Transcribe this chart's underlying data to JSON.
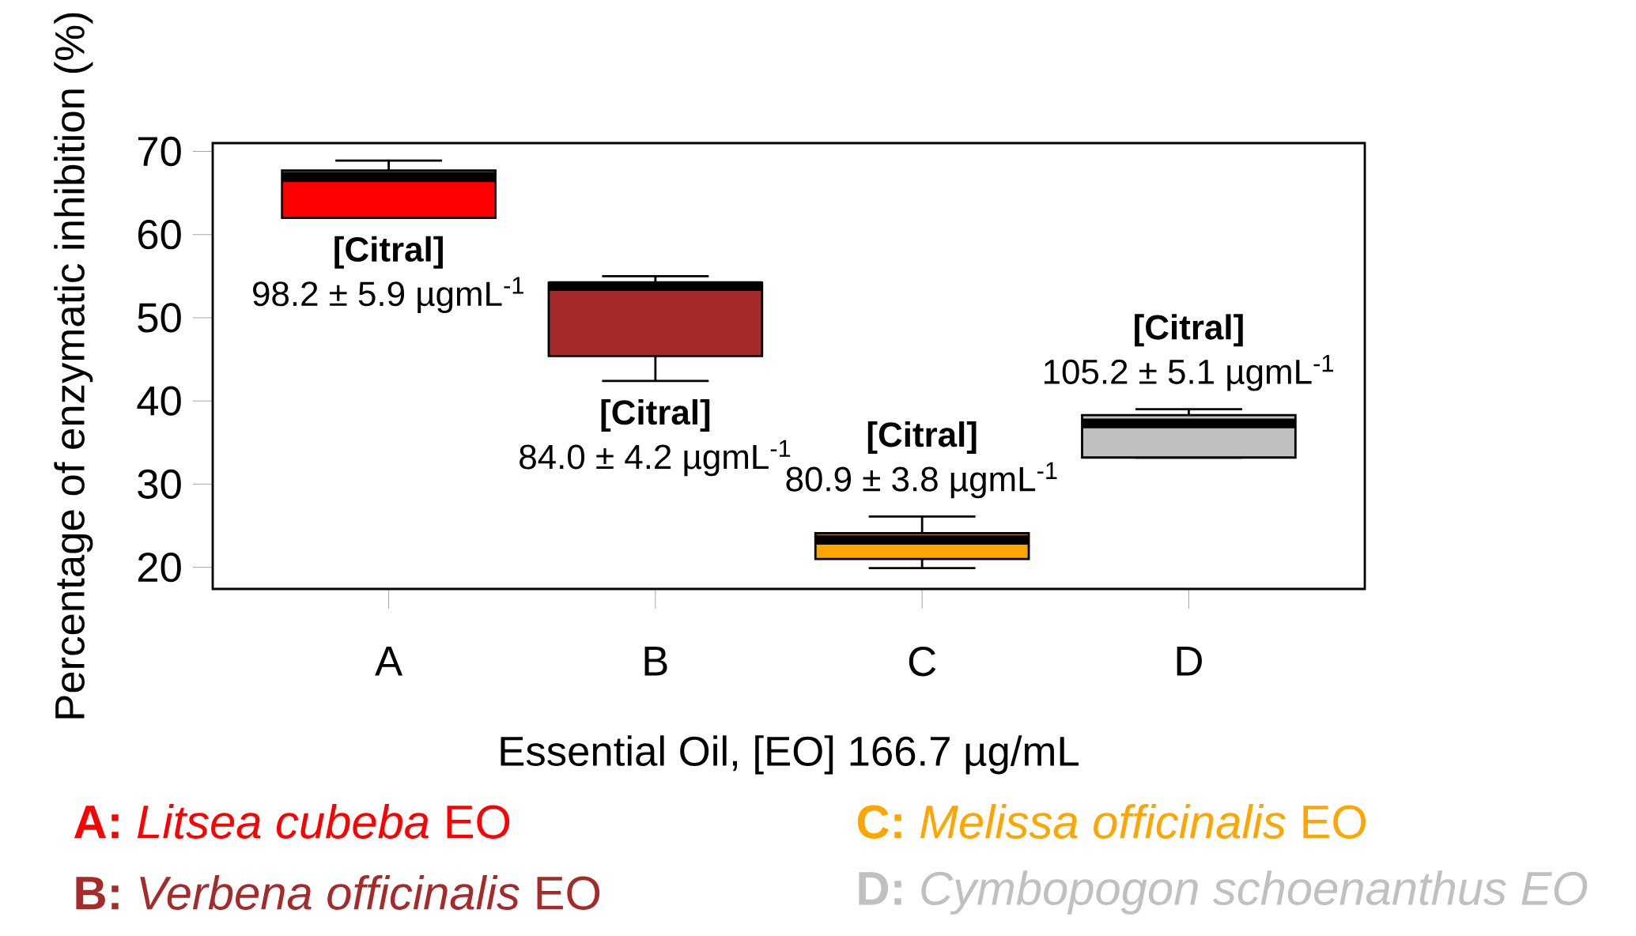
{
  "chart_data": {
    "type": "box",
    "categories": [
      "A",
      "B",
      "C",
      "D"
    ],
    "colors": [
      "#ff0000",
      "#a52a2a",
      "#ffa500",
      "#c0c0c0"
    ],
    "boxes": [
      {
        "low": 62.0,
        "q1": 62.0,
        "median": 66.9,
        "q3": 67.7,
        "high": 68.9
      },
      {
        "low": 42.4,
        "q1": 45.4,
        "median": 53.8,
        "q3": 54.2,
        "high": 55.0
      },
      {
        "low": 19.9,
        "q1": 21.0,
        "median": 23.3,
        "q3": 24.1,
        "high": 26.1
      },
      {
        "low": 33.2,
        "q1": 33.2,
        "median": 37.3,
        "q3": 38.3,
        "high": 39.0
      }
    ],
    "ylim": [
      17.4,
      71
    ],
    "yticks": [
      20,
      30,
      40,
      50,
      60,
      70
    ],
    "xlabel": "Essential Oil, [EO] 166.7 µg/mL",
    "ylabel": "Percentage of enzymatic inhibition (%)",
    "annotations": [
      "**[Citral]**",
      "98.2 ± 5.9 µgmL$^{-1}$",
      "**[Citral]**",
      "84.0 ± 4.2 µgmL$^{-1}$",
      "**[Citral]**",
      "80.9 ± 3.8 µgmL$^{-1}$",
      "**[Citral]**",
      "105.2 ± 5.1 µgmL$^{-1}$",
      "**A:** *Litsea cubeba*  EO",
      "**B:** *Verbena officinalis* EO",
      "**C:** *Melissa officinalis* EO",
      "**D:** *Cymbopogon schoenanthus EO*"
    ]
  }
}
